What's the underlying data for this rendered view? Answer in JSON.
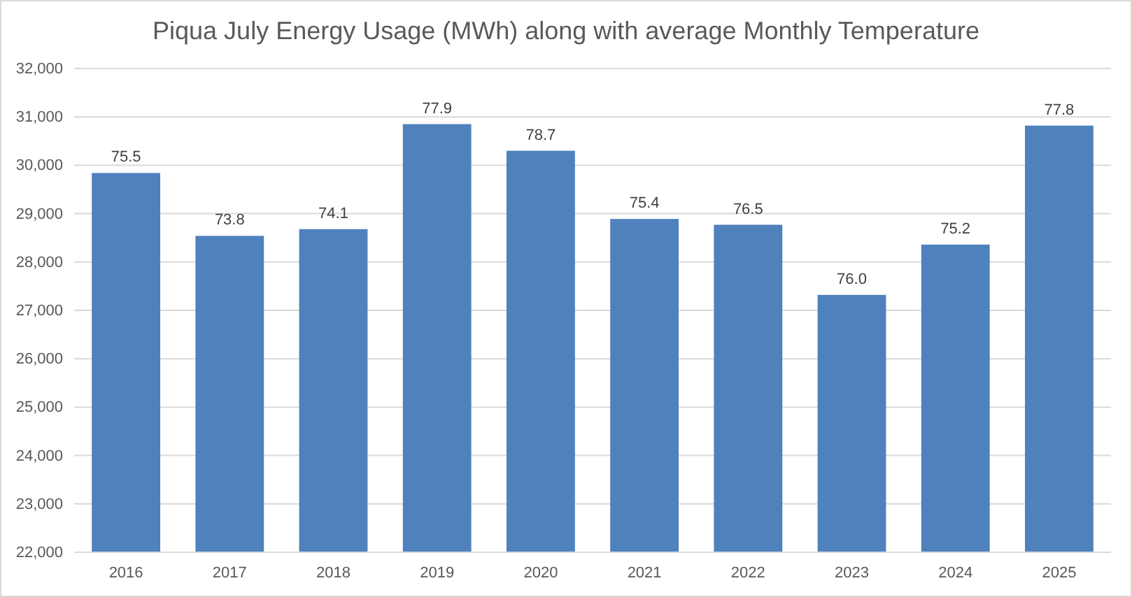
{
  "chart_data": {
    "type": "bar",
    "title": "Piqua July Energy Usage (MWh) along with average Monthly Temperature",
    "categories": [
      "2016",
      "2017",
      "2018",
      "2019",
      "2020",
      "2021",
      "2022",
      "2023",
      "2024",
      "2025"
    ],
    "values": [
      29840,
      28540,
      28680,
      30850,
      30300,
      28890,
      28770,
      27320,
      28360,
      30820
    ],
    "annotations": [
      {
        "text": "75.5",
        "x": "2016",
        "y": 29840
      },
      {
        "text": "73.8",
        "x": "2017",
        "y": 28540
      },
      {
        "text": "74.1",
        "x": "2018",
        "y": 28680
      },
      {
        "text": "77.9",
        "x": "2019",
        "y": 30850
      },
      {
        "text": "78.7",
        "x": "2020",
        "y": 30300
      },
      {
        "text": "75.4",
        "x": "2021",
        "y": 28890
      },
      {
        "text": "76.5",
        "x": "2022",
        "y": 28770
      },
      {
        "text": "76.0",
        "x": "2023",
        "y": 27320
      },
      {
        "text": "75.2",
        "x": "2024",
        "y": 28360
      },
      {
        "text": "77.8",
        "x": "2025",
        "y": 30820
      }
    ],
    "color": "#4f81bd",
    "ylim": [
      22000,
      32000
    ],
    "yticks": [
      {
        "value": 22000,
        "label": "22,000"
      },
      {
        "value": 23000,
        "label": "23,000"
      },
      {
        "value": 24000,
        "label": "24,000"
      },
      {
        "value": 25000,
        "label": "25,000"
      },
      {
        "value": 26000,
        "label": "26,000"
      },
      {
        "value": 27000,
        "label": "27,000"
      },
      {
        "value": 28000,
        "label": "28,000"
      },
      {
        "value": 29000,
        "label": "29,000"
      },
      {
        "value": 30000,
        "label": "30,000"
      },
      {
        "value": 31000,
        "label": "31,000"
      },
      {
        "value": 32000,
        "label": "32,000"
      }
    ],
    "grid": "y"
  }
}
